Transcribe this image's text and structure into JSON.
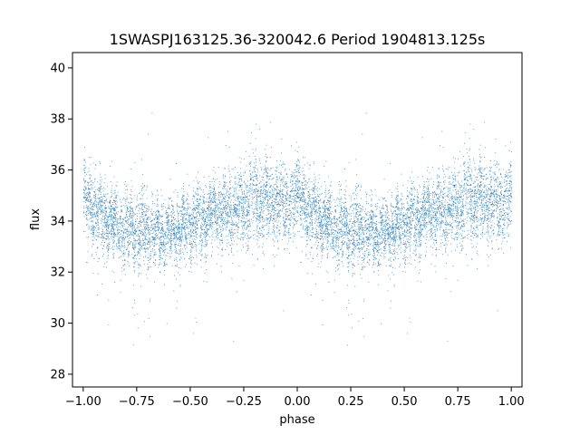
{
  "chart_data": {
    "type": "scatter",
    "title": "1SWASPJ163125.36-320042.6 Period 1904813.125s",
    "xlabel": "phase",
    "ylabel": "flux",
    "xlim": [
      -1.05,
      1.05
    ],
    "ylim": [
      27.5,
      40.6
    ],
    "xticks": [
      -1.0,
      -0.75,
      -0.5,
      -0.25,
      0.0,
      0.25,
      0.5,
      0.75,
      1.0
    ],
    "xtick_labels": [
      "−1.00",
      "−0.75",
      "−0.50",
      "−0.25",
      "0.00",
      "0.25",
      "0.50",
      "0.75",
      "1.00"
    ],
    "yticks": [
      28,
      30,
      32,
      34,
      36,
      38,
      40
    ],
    "ytick_labels": [
      "28",
      "30",
      "32",
      "34",
      "36",
      "38",
      "40"
    ],
    "grid": false,
    "marker_color": "#1f77b4",
    "profile": {
      "phase": [
        0.0,
        0.05,
        0.1,
        0.15,
        0.2,
        0.25,
        0.3,
        0.35,
        0.4,
        0.45,
        0.5,
        0.55,
        0.6,
        0.65,
        0.7,
        0.75,
        0.8,
        0.85,
        0.9,
        0.95,
        1.0
      ],
      "flux": [
        34.9,
        34.5,
        34.0,
        33.9,
        33.8,
        33.7,
        33.6,
        33.5,
        33.5,
        33.7,
        33.9,
        34.1,
        34.3,
        34.4,
        34.4,
        34.7,
        34.8,
        34.8,
        34.7,
        34.7,
        34.9
      ],
      "scatter": [
        0.9,
        0.9,
        0.9,
        0.8,
        0.9,
        0.9,
        1.0,
        0.8,
        0.7,
        0.8,
        0.8,
        0.9,
        0.9,
        0.9,
        1.0,
        1.1,
        1.1,
        1.0,
        1.0,
        1.0,
        0.9
      ]
    },
    "dips": [
      {
        "phase": 0.05,
        "flux": 30.4
      },
      {
        "phase": 0.22,
        "flux": 31.3
      },
      {
        "phase": 0.3,
        "flux": 29.2
      },
      {
        "phase": 0.42,
        "flux": 31.5
      },
      {
        "phase": 0.5,
        "flux": 30.1
      },
      {
        "phase": 0.92,
        "flux": 29.8
      }
    ],
    "n_points_per_cycle": 5200
  }
}
